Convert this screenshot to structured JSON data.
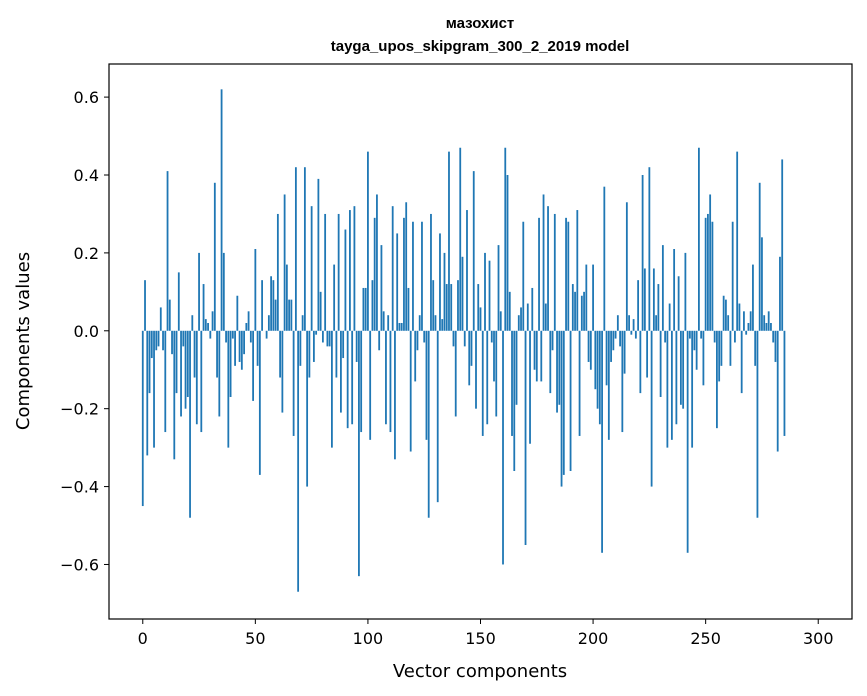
{
  "chart_data": {
    "type": "bar",
    "title": "мазохист",
    "subtitle": "tayga_upos_skipgram_300_2_2019 model",
    "xlabel": "Vector components",
    "ylabel": "Components values",
    "xlim": [
      -15,
      315
    ],
    "ylim": [
      -0.74,
      0.685
    ],
    "xticks": [
      0,
      50,
      100,
      150,
      200,
      250,
      300
    ],
    "xtick_labels": [
      "0",
      "50",
      "100",
      "150",
      "200",
      "250",
      "300"
    ],
    "yticks": [
      -0.6,
      -0.4,
      -0.2,
      0.0,
      0.2,
      0.4,
      0.6
    ],
    "ytick_labels": [
      "−0.6",
      "−0.4",
      "−0.2",
      "0.0",
      "0.2",
      "0.4",
      "0.6"
    ],
    "bar_color": "#1f77b4",
    "bar_width": 0.8,
    "grid": false,
    "legend": "none",
    "values": [
      -0.45,
      0.13,
      -0.32,
      -0.16,
      -0.07,
      -0.3,
      -0.05,
      -0.04,
      0.06,
      -0.05,
      -0.26,
      0.41,
      0.08,
      -0.06,
      -0.33,
      -0.16,
      0.15,
      -0.22,
      -0.04,
      -0.2,
      -0.17,
      -0.48,
      0.04,
      -0.12,
      -0.24,
      0.2,
      -0.26,
      0.12,
      0.03,
      0.02,
      -0.02,
      0.05,
      0.38,
      -0.12,
      -0.22,
      0.62,
      0.2,
      -0.03,
      -0.3,
      -0.17,
      -0.02,
      -0.09,
      0.09,
      -0.08,
      -0.1,
      -0.06,
      0.02,
      0.05,
      -0.03,
      -0.18,
      0.21,
      -0.09,
      -0.37,
      0.13,
      0.0,
      -0.02,
      0.04,
      0.14,
      0.13,
      0.08,
      0.3,
      -0.12,
      -0.21,
      0.35,
      0.17,
      0.08,
      0.08,
      -0.27,
      0.42,
      -0.67,
      -0.09,
      0.04,
      0.42,
      -0.4,
      -0.12,
      0.32,
      -0.08,
      -0.01,
      0.39,
      0.1,
      -0.03,
      0.3,
      -0.04,
      -0.04,
      -0.3,
      0.17,
      -0.12,
      0.3,
      -0.21,
      -0.07,
      0.26,
      -0.25,
      0.31,
      -0.24,
      0.32,
      -0.08,
      -0.63,
      -0.26,
      0.11,
      0.11,
      0.46,
      -0.28,
      0.13,
      0.29,
      0.35,
      -0.05,
      0.22,
      0.05,
      -0.24,
      0.04,
      -0.26,
      0.32,
      -0.33,
      0.25,
      0.02,
      0.02,
      0.29,
      0.33,
      0.11,
      -0.31,
      0.28,
      -0.13,
      -0.05,
      0.04,
      0.28,
      -0.03,
      -0.28,
      -0.48,
      0.3,
      0.13,
      0.04,
      -0.44,
      0.25,
      0.03,
      0.2,
      0.12,
      0.46,
      0.12,
      -0.04,
      -0.22,
      0.13,
      0.47,
      0.19,
      -0.04,
      0.31,
      -0.14,
      -0.09,
      0.41,
      -0.2,
      0.12,
      0.06,
      -0.27,
      0.2,
      -0.24,
      0.18,
      -0.03,
      -0.13,
      -0.22,
      0.22,
      0.05,
      -0.6,
      0.47,
      0.4,
      0.1,
      -0.27,
      -0.36,
      -0.19,
      0.04,
      0.06,
      0.28,
      -0.55,
      0.07,
      -0.29,
      0.11,
      -0.1,
      -0.13,
      0.29,
      -0.13,
      0.35,
      0.07,
      0.32,
      -0.16,
      -0.05,
      0.3,
      -0.21,
      -0.19,
      -0.4,
      -0.37,
      0.29,
      0.28,
      -0.36,
      0.12,
      0.1,
      0.31,
      -0.27,
      0.09,
      0.1,
      0.17,
      -0.08,
      -0.1,
      0.17,
      -0.15,
      -0.2,
      -0.24,
      -0.57,
      0.37,
      -0.14,
      -0.28,
      -0.08,
      -0.05,
      -0.02,
      0.04,
      -0.04,
      -0.26,
      -0.11,
      0.33,
      0.04,
      -0.01,
      0.03,
      -0.02,
      0.13,
      -0.16,
      0.4,
      0.16,
      -0.12,
      0.42,
      -0.4,
      0.16,
      0.04,
      0.12,
      -0.17,
      0.22,
      -0.03,
      -0.3,
      0.07,
      -0.28,
      0.21,
      -0.24,
      0.14,
      -0.19,
      -0.2,
      0.2,
      -0.57,
      -0.02,
      -0.3,
      -0.05,
      -0.1,
      0.47,
      -0.02,
      -0.14,
      0.29,
      0.3,
      0.35,
      0.28,
      -0.03,
      -0.25,
      -0.13,
      -0.09,
      0.09,
      0.08,
      0.04,
      -0.09,
      0.28,
      -0.03,
      0.46,
      0.07,
      -0.16,
      0.05,
      -0.01,
      0.02,
      0.05,
      0.17,
      -0.09,
      -0.48,
      0.38,
      0.24,
      0.04,
      0.02,
      0.05,
      0.02,
      -0.03,
      -0.08,
      -0.31,
      0.19,
      0.44,
      -0.27,
      0.0
    ]
  }
}
